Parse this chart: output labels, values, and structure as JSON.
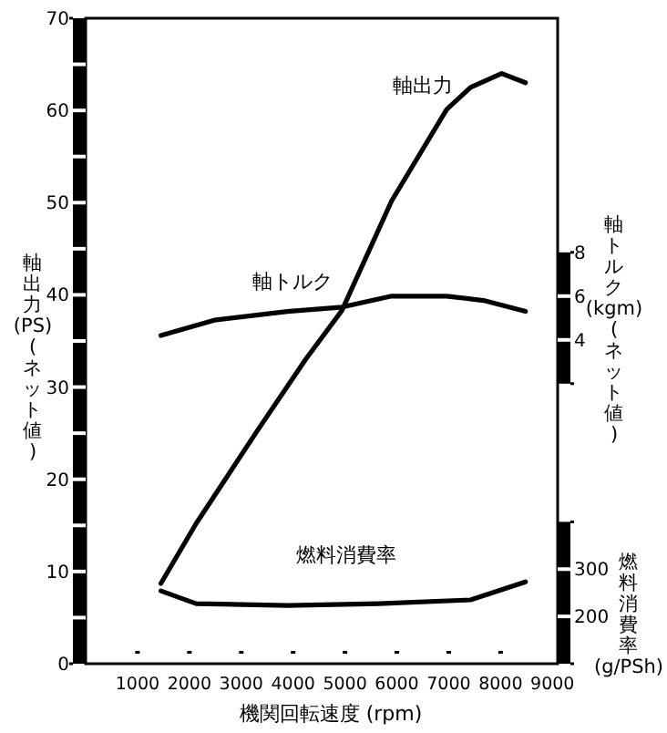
{
  "chart_data": {
    "type": "line",
    "xlabel": "機関回転速度 (rpm)",
    "ylabel": "軸出力(PS)(ネット値)",
    "y2label": "軸トルク(kgm)(ネット値)",
    "y3label": "燃料消費率(g/PSh)",
    "xlim": [
      0,
      9100
    ],
    "xticks": [
      1000,
      2000,
      3000,
      4000,
      5000,
      6000,
      7000,
      8000,
      9000
    ],
    "ylim": [
      0,
      70
    ],
    "yticks": [
      0,
      {
        "value": 5,
        "label": null
      },
      10,
      {
        "value": 15,
        "label": null
      },
      20,
      {
        "value": 25,
        "label": null
      },
      30,
      {
        "value": 35,
        "label": null
      },
      40,
      {
        "value": 45,
        "label": null
      },
      50,
      {
        "value": 55,
        "label": null
      },
      60,
      {
        "value": 65,
        "label": null
      },
      70
    ],
    "y2lim": [
      -10.8,
      18.7
    ],
    "y2ticks": [
      {
        "value": 2,
        "label": null
      },
      4,
      6,
      8
    ],
    "y3lim": [
      100,
      1465
    ],
    "y3ticks": [
      {
        "value": 100,
        "label": null
      },
      200,
      300,
      {
        "value": 400,
        "label": null
      }
    ],
    "marker": "none",
    "line_style": "solid",
    "series": [
      {
        "name": "軸出力",
        "color": "#000000",
        "x": [
          1450,
          2130,
          3290,
          4240,
          4940,
          5900,
          6960,
          7420,
          8020,
          8480
        ],
        "values": [
          8.7,
          15.2,
          25.1,
          33.0,
          38.3,
          50.2,
          60.1,
          62.5,
          64.0,
          63.0
        ]
      },
      {
        "name": "軸トルク",
        "color": "#000000",
        "axis": "y2",
        "x": [
          1450,
          2480,
          3890,
          4950,
          5900,
          6960,
          7670,
          8480
        ],
        "values": [
          4.2,
          4.9,
          5.3,
          5.5,
          6.0,
          6.0,
          5.8,
          5.3
        ]
      },
      {
        "name": "燃料消費率",
        "color": "#000000",
        "axis": "y3",
        "x": [
          1450,
          2130,
          3890,
          5650,
          7420,
          8480
        ],
        "values": [
          254,
          227,
          223,
          227,
          235,
          273
        ]
      }
    ]
  }
}
